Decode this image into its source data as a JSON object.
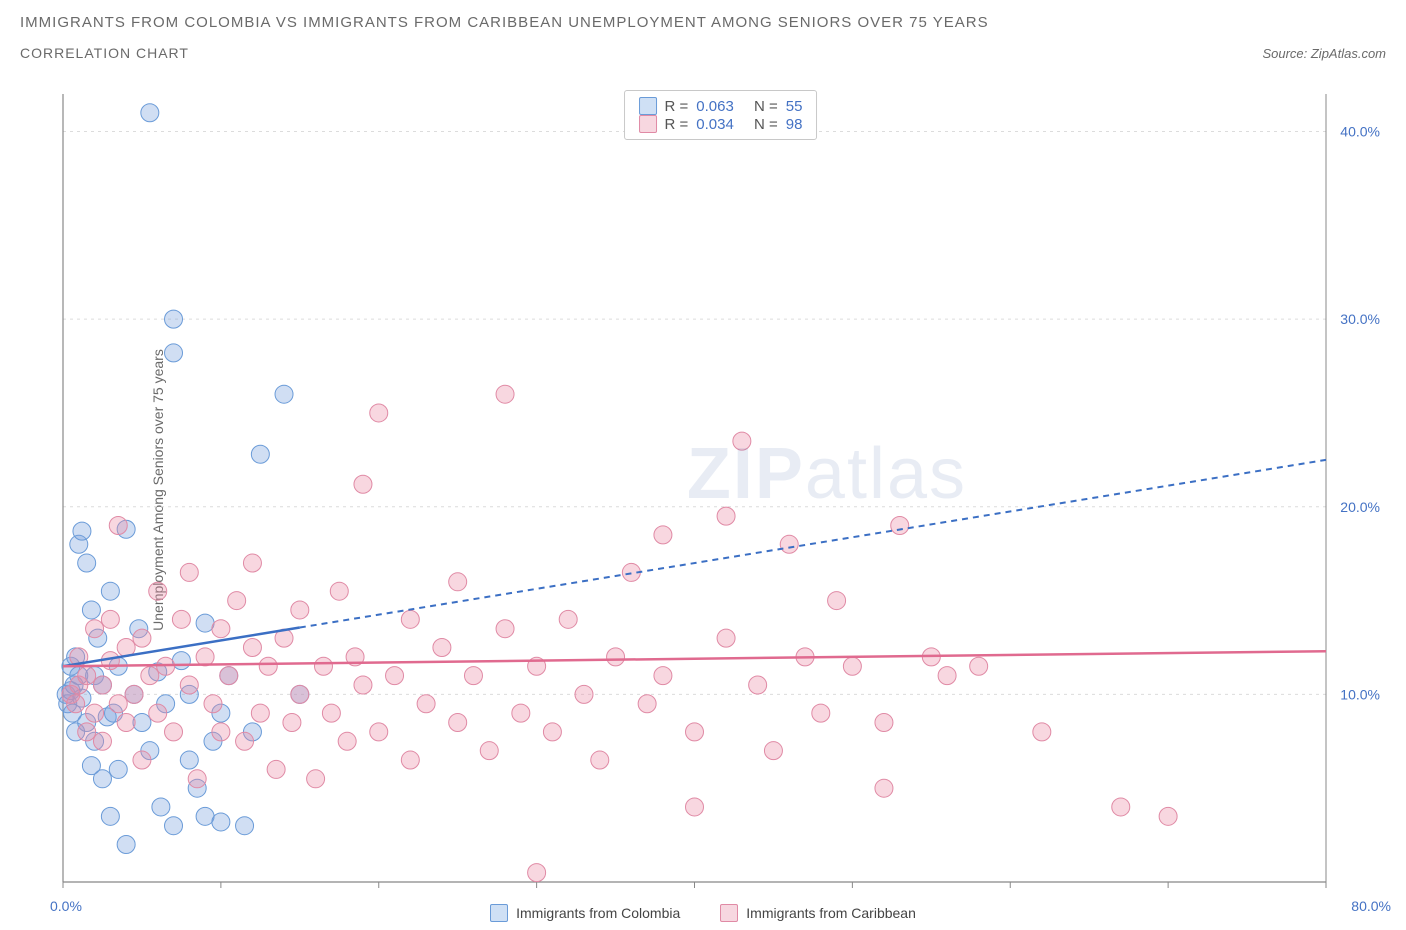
{
  "title": "IMMIGRANTS FROM COLOMBIA VS IMMIGRANTS FROM CARIBBEAN UNEMPLOYMENT AMONG SENIORS OVER 75 YEARS",
  "subtitle": "CORRELATION CHART",
  "source": "Source: ZipAtlas.com",
  "y_axis_label": "Unemployment Among Seniors over 75 years",
  "watermark_a": "ZIP",
  "watermark_b": "atlas",
  "chart": {
    "type": "scatter",
    "background_color": "#ffffff",
    "grid_color": "#dcdcdc",
    "axis_color": "#888888",
    "tick_color": "#888888",
    "xlim": [
      0,
      80
    ],
    "ylim": [
      0,
      42
    ],
    "x_ticks": [
      0,
      10,
      20,
      30,
      40,
      50,
      60,
      70,
      80
    ],
    "y_ticks_right": [
      10,
      20,
      30,
      40
    ],
    "y_tick_labels_right": [
      "10.0%",
      "20.0%",
      "30.0%",
      "40.0%"
    ],
    "x_tick_label_left": "0.0%",
    "x_tick_label_right": "80.0%",
    "y_tick_label_color": "#4472c4",
    "label_fontsize": 14,
    "marker_radius": 9,
    "marker_opacity": 0.35,
    "series": [
      {
        "name": "Immigrants from Colombia",
        "color_fill": "rgba(120,160,220,0.35)",
        "color_stroke": "#6a9bd8",
        "legend_swatch_fill": "#cfe0f5",
        "legend_swatch_border": "#6a9bd8",
        "R": "0.063",
        "N": "55",
        "trend": {
          "x1": 0,
          "y1": 11.5,
          "x2": 80,
          "y2": 22.5,
          "solid_until_x": 15,
          "stroke": "#3b6fc4",
          "width": 2.5,
          "dash": "6,5"
        },
        "points": [
          [
            0.2,
            10.0
          ],
          [
            0.3,
            9.5
          ],
          [
            0.5,
            10.2
          ],
          [
            0.5,
            11.5
          ],
          [
            0.6,
            9.0
          ],
          [
            0.7,
            10.5
          ],
          [
            0.8,
            8.0
          ],
          [
            0.8,
            12.0
          ],
          [
            1.0,
            11.0
          ],
          [
            1.0,
            18.0
          ],
          [
            1.2,
            18.7
          ],
          [
            1.2,
            9.8
          ],
          [
            1.5,
            8.5
          ],
          [
            1.5,
            17.0
          ],
          [
            1.8,
            6.2
          ],
          [
            1.8,
            14.5
          ],
          [
            2.0,
            7.5
          ],
          [
            2.0,
            11.0
          ],
          [
            2.2,
            13.0
          ],
          [
            2.5,
            5.5
          ],
          [
            2.5,
            10.5
          ],
          [
            2.8,
            8.8
          ],
          [
            3.0,
            15.5
          ],
          [
            3.0,
            3.5
          ],
          [
            3.2,
            9.0
          ],
          [
            3.5,
            11.5
          ],
          [
            3.5,
            6.0
          ],
          [
            4.0,
            18.8
          ],
          [
            4.0,
            2.0
          ],
          [
            4.5,
            10.0
          ],
          [
            4.8,
            13.5
          ],
          [
            5.0,
            8.5
          ],
          [
            5.5,
            7.0
          ],
          [
            5.5,
            41.0
          ],
          [
            6.0,
            11.2
          ],
          [
            6.2,
            4.0
          ],
          [
            6.5,
            9.5
          ],
          [
            7.0,
            30.0
          ],
          [
            7.0,
            3.0
          ],
          [
            7.0,
            28.2
          ],
          [
            7.5,
            11.8
          ],
          [
            8.0,
            6.5
          ],
          [
            8.0,
            10.0
          ],
          [
            8.5,
            5.0
          ],
          [
            9.0,
            13.8
          ],
          [
            9.0,
            3.5
          ],
          [
            9.5,
            7.5
          ],
          [
            10.0,
            9.0
          ],
          [
            10.0,
            3.2
          ],
          [
            10.5,
            11.0
          ],
          [
            11.5,
            3.0
          ],
          [
            12.0,
            8.0
          ],
          [
            12.5,
            22.8
          ],
          [
            14.0,
            26.0
          ],
          [
            15.0,
            10.0
          ]
        ]
      },
      {
        "name": "Immigrants from Caribbean",
        "color_fill": "rgba(235,140,165,0.35)",
        "color_stroke": "#e08aa5",
        "legend_swatch_fill": "#f7d7e0",
        "legend_swatch_border": "#e08aa5",
        "R": "0.034",
        "N": "98",
        "trend": {
          "x1": 0,
          "y1": 11.5,
          "x2": 80,
          "y2": 12.3,
          "solid_until_x": 80,
          "stroke": "#e06a8f",
          "width": 2.5,
          "dash": "none"
        },
        "points": [
          [
            0.5,
            10.0
          ],
          [
            0.8,
            9.5
          ],
          [
            1.0,
            12.0
          ],
          [
            1.0,
            10.5
          ],
          [
            1.5,
            8.0
          ],
          [
            1.5,
            11.0
          ],
          [
            2.0,
            9.0
          ],
          [
            2.0,
            13.5
          ],
          [
            2.5,
            10.5
          ],
          [
            2.5,
            7.5
          ],
          [
            3.0,
            11.8
          ],
          [
            3.0,
            14.0
          ],
          [
            3.5,
            9.5
          ],
          [
            3.5,
            19.0
          ],
          [
            4.0,
            8.5
          ],
          [
            4.0,
            12.5
          ],
          [
            4.5,
            10.0
          ],
          [
            5.0,
            6.5
          ],
          [
            5.0,
            13.0
          ],
          [
            5.5,
            11.0
          ],
          [
            6.0,
            15.5
          ],
          [
            6.0,
            9.0
          ],
          [
            6.5,
            11.5
          ],
          [
            7.0,
            8.0
          ],
          [
            7.5,
            14.0
          ],
          [
            8.0,
            10.5
          ],
          [
            8.0,
            16.5
          ],
          [
            8.5,
            5.5
          ],
          [
            9.0,
            12.0
          ],
          [
            9.5,
            9.5
          ],
          [
            10.0,
            13.5
          ],
          [
            10.0,
            8.0
          ],
          [
            10.5,
            11.0
          ],
          [
            11.0,
            15.0
          ],
          [
            11.5,
            7.5
          ],
          [
            12.0,
            12.5
          ],
          [
            12.0,
            17.0
          ],
          [
            12.5,
            9.0
          ],
          [
            13.0,
            11.5
          ],
          [
            13.5,
            6.0
          ],
          [
            14.0,
            13.0
          ],
          [
            14.5,
            8.5
          ],
          [
            15.0,
            14.5
          ],
          [
            15.0,
            10.0
          ],
          [
            16.0,
            5.5
          ],
          [
            16.5,
            11.5
          ],
          [
            17.0,
            9.0
          ],
          [
            17.5,
            15.5
          ],
          [
            18.0,
            7.5
          ],
          [
            18.5,
            12.0
          ],
          [
            19.0,
            10.5
          ],
          [
            19.0,
            21.2
          ],
          [
            20.0,
            8.0
          ],
          [
            20.0,
            25.0
          ],
          [
            21.0,
            11.0
          ],
          [
            22.0,
            14.0
          ],
          [
            22.0,
            6.5
          ],
          [
            23.0,
            9.5
          ],
          [
            24.0,
            12.5
          ],
          [
            25.0,
            8.5
          ],
          [
            25.0,
            16.0
          ],
          [
            26.0,
            11.0
          ],
          [
            27.0,
            7.0
          ],
          [
            28.0,
            13.5
          ],
          [
            28.0,
            26.0
          ],
          [
            29.0,
            9.0
          ],
          [
            30.0,
            11.5
          ],
          [
            30.0,
            0.5
          ],
          [
            31.0,
            8.0
          ],
          [
            32.0,
            14.0
          ],
          [
            33.0,
            10.0
          ],
          [
            34.0,
            6.5
          ],
          [
            35.0,
            12.0
          ],
          [
            36.0,
            16.5
          ],
          [
            37.0,
            9.5
          ],
          [
            38.0,
            11.0
          ],
          [
            38.0,
            18.5
          ],
          [
            40.0,
            8.0
          ],
          [
            40.0,
            4.0
          ],
          [
            42.0,
            13.0
          ],
          [
            42.0,
            19.5
          ],
          [
            43.0,
            23.5
          ],
          [
            44.0,
            10.5
          ],
          [
            45.0,
            7.0
          ],
          [
            46.0,
            18.0
          ],
          [
            47.0,
            12.0
          ],
          [
            48.0,
            9.0
          ],
          [
            49.0,
            15.0
          ],
          [
            50.0,
            11.5
          ],
          [
            52.0,
            8.5
          ],
          [
            52.0,
            5.0
          ],
          [
            53.0,
            19.0
          ],
          [
            55.0,
            12.0
          ],
          [
            56.0,
            11.0
          ],
          [
            58.0,
            11.5
          ],
          [
            62.0,
            8.0
          ],
          [
            67.0,
            4.0
          ],
          [
            70.0,
            3.5
          ]
        ]
      }
    ],
    "bottom_legend": [
      {
        "label": "Immigrants from Colombia",
        "fill": "#cfe0f5",
        "border": "#6a9bd8"
      },
      {
        "label": "Immigrants from Caribbean",
        "fill": "#f7d7e0",
        "border": "#e08aa5"
      }
    ],
    "top_legend_label_R": "R =",
    "top_legend_label_N": "N ="
  }
}
